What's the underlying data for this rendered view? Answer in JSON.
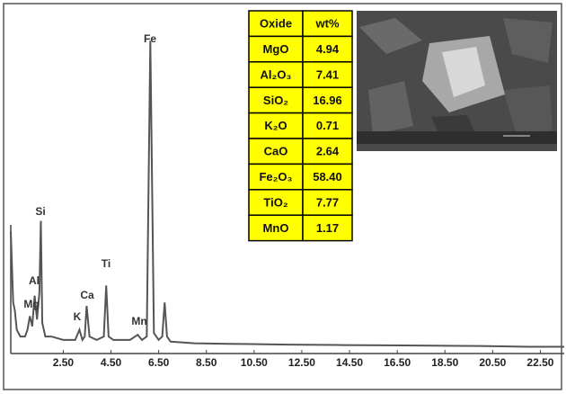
{
  "chart_data": {
    "type": "line",
    "x": [
      0.3,
      0.4,
      0.47,
      0.55,
      0.7,
      0.9,
      1.0,
      1.1,
      1.2,
      1.3,
      1.4,
      1.5,
      1.56,
      1.62,
      1.75,
      2.0,
      2.5,
      3.0,
      3.18,
      3.3,
      3.4,
      3.48,
      3.6,
      3.9,
      4.2,
      4.3,
      4.4,
      4.6,
      4.9,
      5.3,
      5.62,
      5.8,
      6.0,
      6.15,
      6.3,
      6.5,
      6.65,
      6.75,
      6.85,
      7.0,
      8,
      10,
      12,
      14,
      16,
      18,
      20,
      22,
      23.5
    ],
    "values": [
      36,
      15,
      12.7,
      7,
      5,
      5,
      7,
      11,
      8,
      17,
      10,
      18,
      39,
      9,
      5,
      5,
      4,
      4,
      7,
      4,
      5,
      14,
      5,
      4,
      5,
      20,
      5,
      4,
      4,
      4,
      5.5,
      4,
      5,
      92,
      6,
      4,
      5,
      15,
      5,
      3.5,
      3,
      2.8,
      2.6,
      2.5,
      2.4,
      2.3,
      2.2,
      2,
      2
    ],
    "color": "#555555",
    "xlim": [
      0.3,
      23.5
    ],
    "ylim": [
      0,
      100
    ],
    "xticks": [
      {
        "value": 2.5,
        "label": "2.50"
      },
      {
        "value": 4.5,
        "label": "4.50"
      },
      {
        "value": 6.5,
        "label": "6.50"
      },
      {
        "value": 8.5,
        "label": "8.50"
      },
      {
        "value": 10.5,
        "label": "10.50"
      },
      {
        "value": 12.5,
        "label": "12.50"
      },
      {
        "value": 14.5,
        "label": "14.50"
      },
      {
        "value": 16.5,
        "label": "16.50"
      },
      {
        "value": 18.5,
        "label": "18.50"
      },
      {
        "value": 20.5,
        "label": "20.50"
      },
      {
        "value": 22.5,
        "label": "22.50"
      }
    ],
    "annotations": [
      "Fe",
      "Si",
      "Ti",
      "Al",
      "Mg",
      "Ca",
      "K",
      "Mn"
    ]
  },
  "table": {
    "header": [
      "Oxide",
      "wt%"
    ],
    "rows": [
      [
        "MgO",
        "4.94"
      ],
      [
        "Al₂O₃",
        "7.41"
      ],
      [
        "SiO₂",
        "16.96"
      ],
      [
        "K₂O",
        "0.71"
      ],
      [
        "CaO",
        "2.64"
      ],
      [
        "Fe₂O₃",
        "58.40"
      ],
      [
        "TiO₂",
        "7.77"
      ],
      [
        "MnO",
        "1.17"
      ]
    ],
    "color": "#ffff00"
  }
}
